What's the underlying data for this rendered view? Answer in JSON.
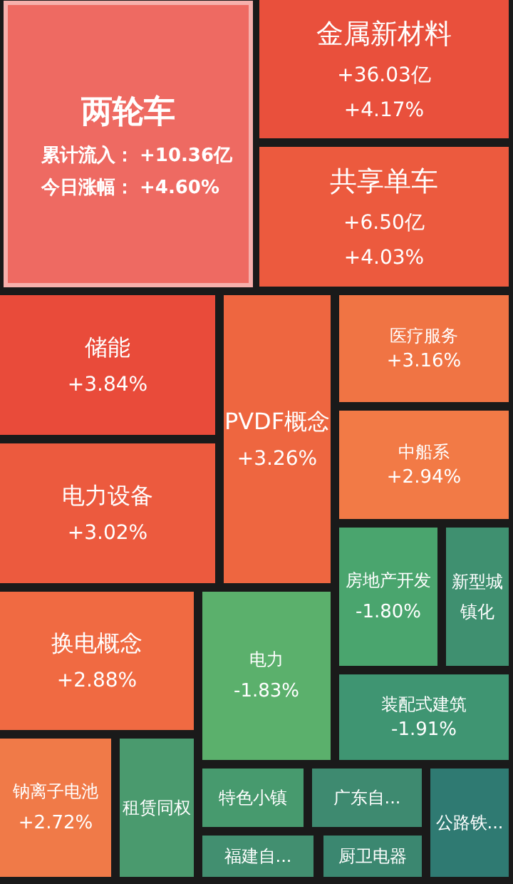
{
  "chart_data": {
    "type": "other",
    "categories": [
      "两轮车",
      "金属新材料",
      "共享单车",
      "储能",
      "电力设备",
      "PVDF概念",
      "医疗服务",
      "中船系",
      "房地产开发",
      "新型城镇化",
      "换电概念",
      "电力",
      "装配式建筑",
      "钠离子电池",
      "租赁同权",
      "特色小镇",
      "广东自...",
      "公路铁...",
      "福建自...",
      "厨卫电器"
    ],
    "series": [
      {
        "values": [
          10.36,
          36.03,
          6.5,
          null,
          null,
          null,
          null,
          null,
          null,
          null,
          null,
          null,
          null,
          null,
          null,
          null,
          null,
          null,
          null,
          null
        ],
        "colors": [
          "#ee6a62",
          "#e9503c",
          "#ec5a3e",
          null,
          null,
          null,
          null,
          null,
          null,
          null,
          null,
          null,
          null,
          null,
          null,
          null,
          null,
          null,
          null,
          null
        ],
        "value_labels": [
          "+10.36亿",
          "+36.03亿",
          "+6.50亿",
          null,
          null,
          null,
          null,
          null,
          null,
          null,
          null,
          null,
          null,
          null,
          null,
          null,
          null,
          null,
          null,
          null
        ]
      },
      {
        "values": [
          4.6,
          4.17,
          4.03,
          3.84,
          3.02,
          3.26,
          3.16,
          2.94,
          -1.8,
          null,
          2.88,
          -1.83,
          -1.91,
          2.72,
          null,
          null,
          null,
          null,
          null,
          null
        ],
        "colors": [
          "#ee6a62",
          "#e9503c",
          "#ec5a3e",
          "#e94b3a",
          "#ec5a3e",
          "#ee6640",
          "#f07444",
          "#f27a46",
          "#4aa56e",
          "#3f9070",
          "#f06a42",
          "#5bb06c",
          "#3f9572",
          "#f07a48",
          "#4a9a6e",
          "#479a6e",
          "#3e8a70",
          "#2f7a72",
          "#428f70",
          "#3b8770"
        ],
        "value_labels": [
          "+4.60%",
          "+4.17%",
          "+4.03%",
          "+3.84%",
          "+3.02%",
          "+3.26%",
          "+3.16%",
          "+2.94%",
          "-1.80%",
          null,
          "+2.88%",
          "-1.83%",
          "-1.91%",
          "+2.72%",
          null,
          null,
          null,
          null,
          null,
          null
        ]
      }
    ],
    "annotations": [
      "累计流入：",
      "今日涨幅："
    ]
  }
}
